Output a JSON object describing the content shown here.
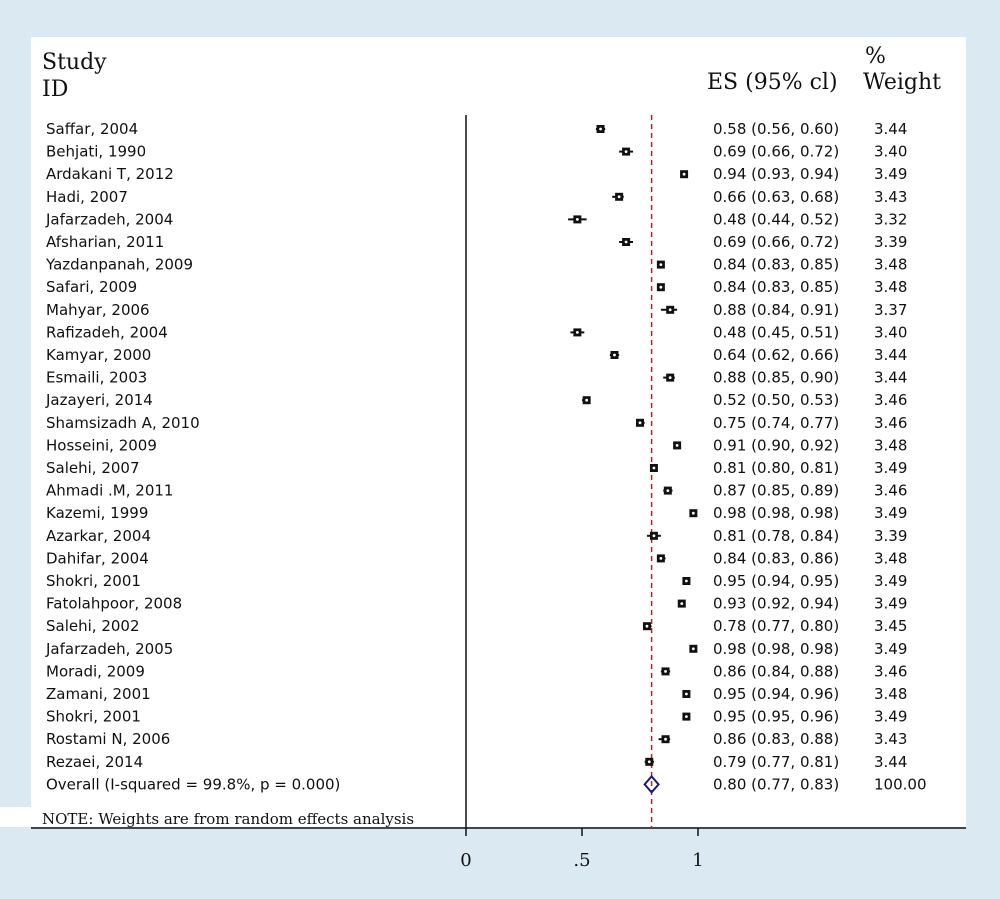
{
  "chart_data": {
    "type": "forest",
    "header": {
      "study_id": [
        "Study",
        "ID"
      ],
      "es": "ES (95% cl)",
      "weight": [
        "%",
        "Weight"
      ]
    },
    "studies": [
      {
        "label": "Saffar, 2004",
        "es": 0.58,
        "lo": 0.56,
        "hi": 0.6,
        "ci_text": "0.58 (0.56, 0.60)",
        "weight": "3.44"
      },
      {
        "label": "Behjati, 1990",
        "es": 0.69,
        "lo": 0.66,
        "hi": 0.72,
        "ci_text": "0.69 (0.66, 0.72)",
        "weight": "3.40"
      },
      {
        "label": "Ardakani T, 2012",
        "es": 0.94,
        "lo": 0.93,
        "hi": 0.94,
        "ci_text": "0.94 (0.93, 0.94)",
        "weight": "3.49"
      },
      {
        "label": "Hadi, 2007",
        "es": 0.66,
        "lo": 0.63,
        "hi": 0.68,
        "ci_text": "0.66 (0.63, 0.68)",
        "weight": "3.43"
      },
      {
        "label": "Jafarzadeh, 2004",
        "es": 0.48,
        "lo": 0.44,
        "hi": 0.52,
        "ci_text": "0.48 (0.44, 0.52)",
        "weight": "3.32"
      },
      {
        "label": "Afsharian, 2011",
        "es": 0.69,
        "lo": 0.66,
        "hi": 0.72,
        "ci_text": "0.69 (0.66, 0.72)",
        "weight": "3.39"
      },
      {
        "label": "Yazdanpanah, 2009",
        "es": 0.84,
        "lo": 0.83,
        "hi": 0.85,
        "ci_text": "0.84 (0.83, 0.85)",
        "weight": "3.48"
      },
      {
        "label": "Safari, 2009",
        "es": 0.84,
        "lo": 0.83,
        "hi": 0.85,
        "ci_text": "0.84 (0.83, 0.85)",
        "weight": "3.48"
      },
      {
        "label": "Mahyar, 2006",
        "es": 0.88,
        "lo": 0.84,
        "hi": 0.91,
        "ci_text": "0.88 (0.84, 0.91)",
        "weight": "3.37"
      },
      {
        "label": "Rafizadeh, 2004",
        "es": 0.48,
        "lo": 0.45,
        "hi": 0.51,
        "ci_text": "0.48 (0.45, 0.51)",
        "weight": "3.40"
      },
      {
        "label": "Kamyar, 2000",
        "es": 0.64,
        "lo": 0.62,
        "hi": 0.66,
        "ci_text": "0.64 (0.62, 0.66)",
        "weight": "3.44"
      },
      {
        "label": "Esmaili, 2003",
        "es": 0.88,
        "lo": 0.85,
        "hi": 0.9,
        "ci_text": "0.88 (0.85, 0.90)",
        "weight": "3.44"
      },
      {
        "label": "Jazayeri, 2014",
        "es": 0.52,
        "lo": 0.5,
        "hi": 0.53,
        "ci_text": "0.52 (0.50, 0.53)",
        "weight": "3.46"
      },
      {
        "label": "Shamsizadh A, 2010",
        "es": 0.75,
        "lo": 0.74,
        "hi": 0.77,
        "ci_text": "0.75 (0.74, 0.77)",
        "weight": "3.46"
      },
      {
        "label": "Hosseini, 2009",
        "es": 0.91,
        "lo": 0.9,
        "hi": 0.92,
        "ci_text": "0.91 (0.90, 0.92)",
        "weight": "3.48"
      },
      {
        "label": "Salehi, 2007",
        "es": 0.81,
        "lo": 0.8,
        "hi": 0.81,
        "ci_text": "0.81 (0.80, 0.81)",
        "weight": "3.49"
      },
      {
        "label": "Ahmadi .M, 2011",
        "es": 0.87,
        "lo": 0.85,
        "hi": 0.89,
        "ci_text": "0.87 (0.85, 0.89)",
        "weight": "3.46"
      },
      {
        "label": "Kazemi, 1999",
        "es": 0.98,
        "lo": 0.98,
        "hi": 0.98,
        "ci_text": "0.98 (0.98, 0.98)",
        "weight": "3.49"
      },
      {
        "label": "Azarkar, 2004",
        "es": 0.81,
        "lo": 0.78,
        "hi": 0.84,
        "ci_text": "0.81 (0.78, 0.84)",
        "weight": "3.39"
      },
      {
        "label": "Dahifar, 2004",
        "es": 0.84,
        "lo": 0.83,
        "hi": 0.86,
        "ci_text": "0.84 (0.83, 0.86)",
        "weight": "3.48"
      },
      {
        "label": "Shokri, 2001",
        "es": 0.95,
        "lo": 0.94,
        "hi": 0.95,
        "ci_text": "0.95 (0.94, 0.95)",
        "weight": "3.49"
      },
      {
        "label": "Fatolahpoor, 2008",
        "es": 0.93,
        "lo": 0.92,
        "hi": 0.94,
        "ci_text": "0.93 (0.92, 0.94)",
        "weight": "3.49"
      },
      {
        "label": "Salehi, 2002",
        "es": 0.78,
        "lo": 0.77,
        "hi": 0.8,
        "ci_text": "0.78 (0.77, 0.80)",
        "weight": "3.45"
      },
      {
        "label": "Jafarzadeh, 2005",
        "es": 0.98,
        "lo": 0.98,
        "hi": 0.98,
        "ci_text": "0.98 (0.98, 0.98)",
        "weight": "3.49"
      },
      {
        "label": "Moradi, 2009",
        "es": 0.86,
        "lo": 0.84,
        "hi": 0.88,
        "ci_text": "0.86 (0.84, 0.88)",
        "weight": "3.46"
      },
      {
        "label": "Zamani, 2001",
        "es": 0.95,
        "lo": 0.94,
        "hi": 0.96,
        "ci_text": "0.95 (0.94, 0.96)",
        "weight": "3.48"
      },
      {
        "label": "Shokri, 2001",
        "es": 0.95,
        "lo": 0.95,
        "hi": 0.96,
        "ci_text": "0.95 (0.95, 0.96)",
        "weight": "3.49"
      },
      {
        "label": "Rostami N, 2006",
        "es": 0.86,
        "lo": 0.83,
        "hi": 0.88,
        "ci_text": "0.86 (0.83, 0.88)",
        "weight": "3.43"
      },
      {
        "label": "Rezaei, 2014",
        "es": 0.79,
        "lo": 0.77,
        "hi": 0.81,
        "ci_text": "0.79 (0.77, 0.81)",
        "weight": "3.44"
      }
    ],
    "overall": {
      "label": "Overall  (I-squared = 99.8%, p = 0.000)",
      "es": 0.8,
      "lo": 0.77,
      "hi": 0.83,
      "ci_text": "0.80 (0.77, 0.83)",
      "weight": "100.00"
    },
    "note": "NOTE: Weights are from random effects analysis",
    "x_ticks": [
      {
        "value": 0,
        "label": "0"
      },
      {
        "value": 0.5,
        "label": ".5"
      },
      {
        "value": 1,
        "label": "1"
      }
    ],
    "null_line": 0,
    "reference_line": 0.8,
    "colors": {
      "reference_line": "#a52a2a",
      "diamond": "#1a1a6e",
      "marker": "#111111",
      "background": "#dbe9f2"
    }
  }
}
